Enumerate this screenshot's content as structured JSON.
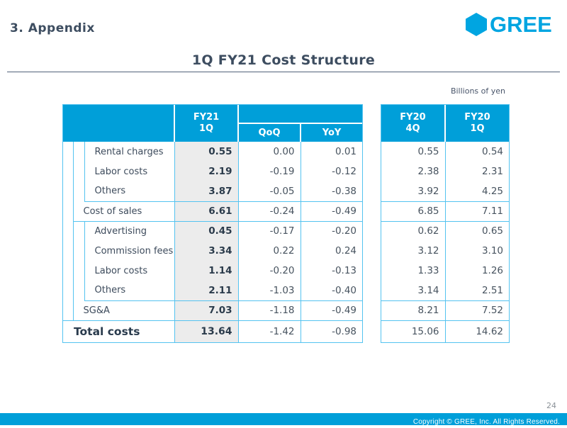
{
  "header": {
    "section": "3. Appendix",
    "title": "1Q FY21 Cost Structure",
    "logo_text": "GREE"
  },
  "table": {
    "unit_note": "Billions of yen",
    "headers": {
      "fy21_1q": "FY21\n1Q",
      "qoq": "QoQ",
      "yoy": "YoY",
      "fy20_4q": "FY20\n4Q",
      "fy20_1q": "FY20\n1Q"
    },
    "rows": [
      {
        "label": "Rental charges",
        "level": "item",
        "line": "none",
        "fy21_1q": "0.55",
        "qoq": "0.00",
        "yoy": "0.01",
        "fy20_4q": "0.55",
        "fy20_1q": "0.54"
      },
      {
        "label": "Labor costs",
        "level": "item",
        "line": "none",
        "fy21_1q": "2.19",
        "qoq": "-0.19",
        "yoy": "-0.12",
        "fy20_4q": "2.38",
        "fy20_1q": "2.31"
      },
      {
        "label": "Others",
        "level": "item",
        "line": "v2",
        "fy21_1q": "3.87",
        "qoq": "-0.05",
        "yoy": "-0.38",
        "fy20_4q": "3.92",
        "fy20_1q": "4.25"
      },
      {
        "label": "Cost of sales",
        "level": "subtotal",
        "line": "v1",
        "fy21_1q": "6.61",
        "qoq": "-0.24",
        "yoy": "-0.49",
        "fy20_4q": "6.85",
        "fy20_1q": "7.11"
      },
      {
        "label": "Advertising",
        "level": "item",
        "line": "none",
        "fy21_1q": "0.45",
        "qoq": "-0.17",
        "yoy": "-0.20",
        "fy20_4q": "0.62",
        "fy20_1q": "0.65"
      },
      {
        "label": "Commission fees",
        "level": "item",
        "line": "none",
        "fy21_1q": "3.34",
        "qoq": "0.22",
        "yoy": "0.24",
        "fy20_4q": "3.12",
        "fy20_1q": "3.10"
      },
      {
        "label": "Labor costs",
        "level": "item",
        "line": "none",
        "fy21_1q": "1.14",
        "qoq": "-0.20",
        "yoy": "-0.13",
        "fy20_4q": "1.33",
        "fy20_1q": "1.26"
      },
      {
        "label": "Others",
        "level": "item",
        "line": "v2",
        "fy21_1q": "2.11",
        "qoq": "-1.03",
        "yoy": "-0.40",
        "fy20_4q": "3.14",
        "fy20_1q": "2.51"
      },
      {
        "label": "SG&A",
        "level": "subtotal",
        "line": "full",
        "fy21_1q": "7.03",
        "qoq": "-1.18",
        "yoy": "-0.49",
        "fy20_4q": "8.21",
        "fy20_1q": "7.52"
      },
      {
        "label": "Total costs",
        "level": "total",
        "line": "none",
        "fy21_1q": "13.64",
        "qoq": "-1.42",
        "yoy": "-0.98",
        "fy20_4q": "15.06",
        "fy20_1q": "14.62"
      }
    ]
  },
  "footer": {
    "page_number": "24",
    "copyright": "Copyright © GREE, Inc. All Rights Reserved."
  },
  "colors": {
    "accent_blue": "#009FD9",
    "table_border_blue": "#54C3F0",
    "logo_cyan": "#00A5E1",
    "navy_text": "#3D4D60",
    "fy21_column_bg": "#ECECEC"
  }
}
